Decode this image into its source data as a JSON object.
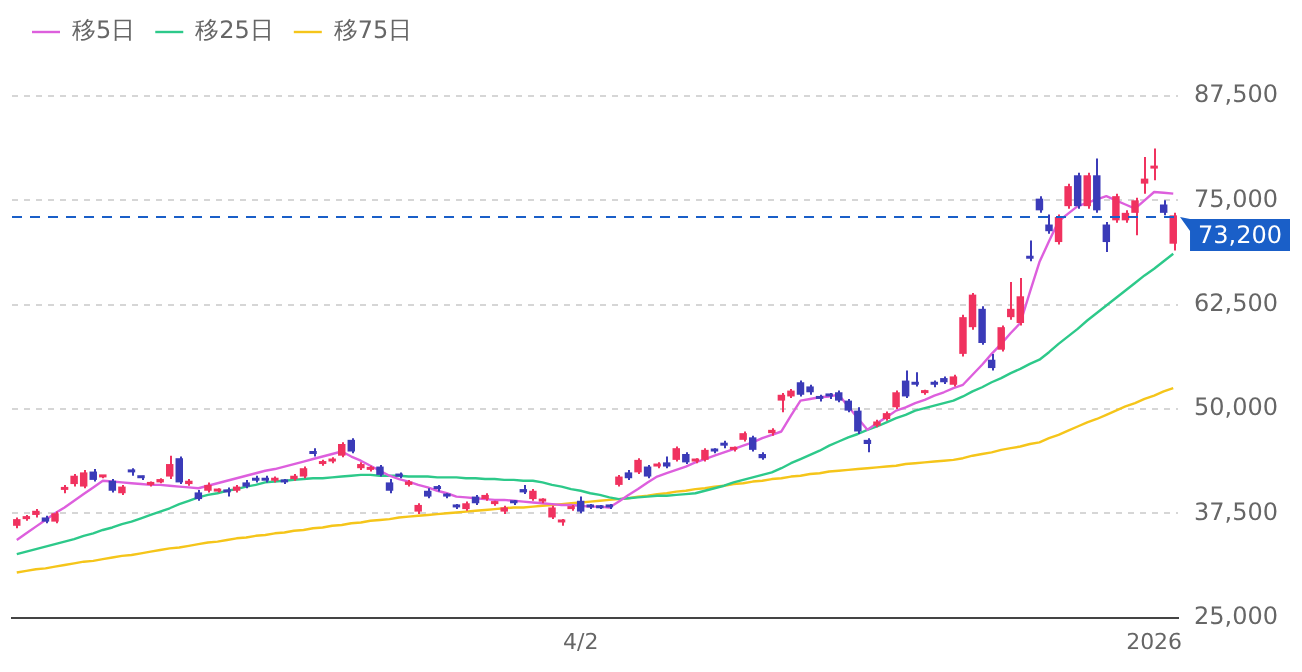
{
  "chart_data": {
    "type": "candlestick",
    "categories": [
      null,
      null,
      null,
      null,
      null,
      null,
      null,
      null,
      null,
      null,
      null,
      null,
      null,
      null,
      null,
      null,
      null,
      null,
      null,
      null,
      null,
      null,
      null,
      null,
      null,
      null,
      null,
      null,
      null,
      null,
      null,
      null,
      null,
      null,
      null,
      null,
      null,
      null,
      null,
      null,
      null,
      null,
      null,
      null,
      null,
      null,
      null,
      null,
      null,
      null,
      null,
      null,
      null,
      null,
      null,
      null,
      null,
      null,
      null,
      "4/2",
      null,
      null,
      null,
      null,
      null,
      null,
      null,
      null,
      null,
      null,
      null,
      null,
      null,
      null,
      null,
      null,
      null,
      null,
      null,
      null,
      null,
      null,
      null,
      null,
      null,
      null,
      null,
      null,
      null,
      null,
      null,
      null,
      null,
      null,
      null,
      null,
      null,
      null,
      null,
      null,
      null,
      null,
      null,
      null,
      null,
      null,
      null,
      null,
      null,
      null,
      null,
      null,
      null,
      null,
      null,
      null,
      null,
      null,
      null,
      "2026",
      null,
      null
    ],
    "ohlc": [
      [
        36000,
        37000,
        35700,
        36800
      ],
      [
        36800,
        37300,
        36600,
        37100
      ],
      [
        37300,
        38000,
        37000,
        37800
      ],
      [
        37000,
        37200,
        36300,
        36500
      ],
      [
        36500,
        37700,
        36300,
        37500
      ],
      [
        40300,
        40900,
        39900,
        40400
      ],
      [
        41000,
        42200,
        40700,
        42000
      ],
      [
        40700,
        42700,
        40500,
        42400
      ],
      [
        42500,
        42800,
        41300,
        41500
      ],
      [
        41800,
        42000,
        41700,
        41900
      ],
      [
        41400,
        41600,
        40000,
        40200
      ],
      [
        39900,
        40900,
        39700,
        40700
      ],
      [
        42500,
        42900,
        42000,
        42400
      ],
      [
        41900,
        42000,
        41500,
        41700
      ],
      [
        40900,
        41300,
        40700,
        41200
      ],
      [
        41200,
        41700,
        41100,
        41600
      ],
      [
        41900,
        44400,
        41600,
        43400
      ],
      [
        44100,
        44300,
        41000,
        41200
      ],
      [
        41000,
        41600,
        40800,
        41400
      ],
      [
        40000,
        40300,
        39000,
        39200
      ],
      [
        40200,
        41200,
        40000,
        40900
      ],
      [
        40100,
        40500,
        40000,
        40300
      ],
      [
        40100,
        40600,
        39500,
        40000
      ],
      [
        40200,
        40900,
        40000,
        40700
      ],
      [
        41200,
        41500,
        40500,
        40700
      ],
      [
        41600,
        42000,
        41200,
        41400
      ],
      [
        41600,
        42000,
        41200,
        41400
      ],
      [
        41400,
        41900,
        41200,
        41700
      ],
      [
        41400,
        41600,
        41000,
        41200
      ],
      [
        41600,
        42200,
        41400,
        42000
      ],
      [
        41900,
        43100,
        41700,
        42900
      ],
      [
        44700,
        45300,
        44300,
        44600
      ],
      [
        43400,
        43900,
        43200,
        43700
      ],
      [
        43700,
        44200,
        43500,
        44000
      ],
      [
        44400,
        46000,
        44200,
        45800
      ],
      [
        46300,
        46500,
        44700,
        44900
      ],
      [
        42900,
        43600,
        42700,
        43400
      ],
      [
        42700,
        43200,
        42500,
        43000
      ],
      [
        43100,
        43300,
        41900,
        42100
      ],
      [
        41200,
        41600,
        39900,
        40200
      ],
      [
        42100,
        42400,
        41700,
        41900
      ],
      [
        40900,
        41500,
        40700,
        41300
      ],
      [
        37700,
        38700,
        37400,
        38500
      ],
      [
        40200,
        40500,
        39300,
        39500
      ],
      [
        40500,
        40900,
        40100,
        40400
      ],
      [
        39700,
        39900,
        39300,
        39500
      ],
      [
        38400,
        38600,
        38000,
        38200
      ],
      [
        38000,
        38900,
        37800,
        38700
      ],
      [
        39500,
        39700,
        38500,
        38700
      ],
      [
        39200,
        39900,
        39000,
        39700
      ],
      [
        38600,
        39000,
        38400,
        38700
      ],
      [
        37700,
        38400,
        37400,
        38200
      ],
      [
        38800,
        39100,
        38500,
        38700
      ],
      [
        40400,
        40900,
        39800,
        40000
      ],
      [
        39200,
        40400,
        39000,
        40200
      ],
      [
        38900,
        39300,
        38700,
        39000
      ],
      [
        37000,
        38400,
        36800,
        38200
      ],
      [
        36400,
        36800,
        36000,
        36600
      ],
      [
        38000,
        38500,
        37800,
        38300
      ],
      [
        39000,
        39500,
        37500,
        37700
      ],
      [
        38400,
        38600,
        38000,
        38200
      ],
      [
        38300,
        38500,
        38000,
        38100
      ],
      [
        38400,
        38600,
        38000,
        38200
      ],
      [
        40900,
        42100,
        40700,
        41900
      ],
      [
        42400,
        42700,
        41500,
        41700
      ],
      [
        42400,
        44100,
        42200,
        43900
      ],
      [
        43100,
        43300,
        41700,
        41900
      ],
      [
        43100,
        43600,
        42900,
        43400
      ],
      [
        43600,
        44300,
        42900,
        43100
      ],
      [
        43900,
        45500,
        43700,
        45300
      ],
      [
        44600,
        44800,
        43400,
        43600
      ],
      [
        43700,
        44100,
        43500,
        43900
      ],
      [
        43900,
        45300,
        43700,
        45100
      ],
      [
        45100,
        45300,
        44700,
        44900
      ],
      [
        45700,
        46200,
        45300,
        45600
      ],
      [
        45100,
        45500,
        44900,
        45300
      ],
      [
        46300,
        47300,
        46100,
        47100
      ],
      [
        46600,
        46800,
        44900,
        45100
      ],
      [
        44600,
        44800,
        43900,
        44100
      ],
      [
        47100,
        47700,
        46800,
        47500
      ],
      [
        51000,
        51900,
        49600,
        51700
      ],
      [
        51500,
        52400,
        51300,
        52200
      ],
      [
        53200,
        53400,
        51500,
        51700
      ],
      [
        52700,
        52900,
        51700,
        52000
      ],
      [
        51300,
        51700,
        50900,
        51200
      ],
      [
        51600,
        51900,
        51200,
        51500
      ],
      [
        52000,
        52200,
        50800,
        51000
      ],
      [
        51000,
        51200,
        49600,
        49800
      ],
      [
        49800,
        50200,
        47000,
        47300
      ],
      [
        46300,
        46500,
        44800,
        45800
      ],
      [
        48000,
        48700,
        47800,
        48500
      ],
      [
        48800,
        49700,
        48600,
        49500
      ],
      [
        50200,
        52200,
        50000,
        52000
      ],
      [
        53400,
        54600,
        51300,
        51500
      ],
      [
        53000,
        54400,
        52700,
        52900
      ],
      [
        51900,
        52300,
        51700,
        52100
      ],
      [
        53000,
        53400,
        52600,
        52900
      ],
      [
        53700,
        53900,
        53000,
        53200
      ],
      [
        52900,
        54100,
        52700,
        53900
      ],
      [
        56600,
        61300,
        56300,
        61000
      ],
      [
        59800,
        63900,
        59500,
        63700
      ],
      [
        62000,
        62300,
        57700,
        57900
      ],
      [
        55900,
        56600,
        54600,
        54900
      ],
      [
        57100,
        60000,
        56900,
        59800
      ],
      [
        61000,
        65200,
        60700,
        62000
      ],
      [
        60300,
        65700,
        60000,
        63500
      ],
      [
        68200,
        70200,
        67700,
        68000
      ],
      [
        75200,
        75500,
        73500,
        73800
      ],
      [
        72100,
        73300,
        71000,
        71300
      ],
      [
        70000,
        73300,
        69700,
        73000
      ],
      [
        74300,
        77000,
        74000,
        76700
      ],
      [
        78000,
        78300,
        74000,
        74300
      ],
      [
        74300,
        78300,
        74000,
        78000
      ],
      [
        78000,
        80000,
        73500,
        73800
      ],
      [
        72100,
        72400,
        68800,
        70000
      ],
      [
        72600,
        75800,
        72300,
        75500
      ],
      [
        72600,
        73800,
        72300,
        73500
      ],
      [
        73500,
        75300,
        70800,
        75000
      ],
      [
        77000,
        80200,
        75800,
        77600
      ],
      [
        78800,
        81200,
        77400,
        79000
      ],
      [
        74500,
        75000,
        73200,
        73500
      ],
      [
        69800,
        73500,
        69000,
        73200
      ]
    ],
    "colors": [
      "#f0325f",
      "#f0325f",
      "#f0325f",
      "#3b3bb8",
      "#f0325f",
      "#f0325f",
      "#f0325f",
      "#f0325f",
      "#3b3bb8",
      "#f0325f",
      "#3b3bb8",
      "#f0325f",
      "#3b3bb8",
      "#3b3bb8",
      "#f0325f",
      "#f0325f",
      "#f0325f",
      "#3b3bb8",
      "#f0325f",
      "#3b3bb8",
      "#f0325f",
      "#f0325f",
      "#3b3bb8",
      "#f0325f",
      "#3b3bb8",
      "#3b3bb8",
      "#3b3bb8",
      "#f0325f",
      "#3b3bb8",
      "#f0325f",
      "#f0325f",
      "#3b3bb8",
      "#f0325f",
      "#f0325f",
      "#f0325f",
      "#3b3bb8",
      "#f0325f",
      "#f0325f",
      "#3b3bb8",
      "#3b3bb8",
      "#3b3bb8",
      "#f0325f",
      "#f0325f",
      "#3b3bb8",
      "#3b3bb8",
      "#3b3bb8",
      "#3b3bb8",
      "#f0325f",
      "#3b3bb8",
      "#f0325f",
      "#f0325f",
      "#f0325f",
      "#3b3bb8",
      "#3b3bb8",
      "#f0325f",
      "#f0325f",
      "#f0325f",
      "#f0325f",
      "#f0325f",
      "#3b3bb8",
      "#3b3bb8",
      "#3b3bb8",
      "#3b3bb8",
      "#f0325f",
      "#3b3bb8",
      "#f0325f",
      "#3b3bb8",
      "#f0325f",
      "#3b3bb8",
      "#f0325f",
      "#3b3bb8",
      "#f0325f",
      "#f0325f",
      "#3b3bb8",
      "#3b3bb8",
      "#f0325f",
      "#f0325f",
      "#3b3bb8",
      "#3b3bb8",
      "#f0325f",
      "#f0325f",
      "#f0325f",
      "#3b3bb8",
      "#3b3bb8",
      "#3b3bb8",
      "#3b3bb8",
      "#3b3bb8",
      "#3b3bb8",
      "#3b3bb8",
      "#3b3bb8",
      "#f0325f",
      "#f0325f",
      "#f0325f",
      "#3b3bb8",
      "#3b3bb8",
      "#f0325f",
      "#3b3bb8",
      "#3b3bb8",
      "#f0325f",
      "#f0325f",
      "#f0325f",
      "#3b3bb8",
      "#3b3bb8",
      "#f0325f",
      "#f0325f",
      "#f0325f",
      "#3b3bb8",
      "#3b3bb8",
      "#3b3bb8",
      "#f0325f",
      "#f0325f",
      "#3b3bb8",
      "#f0325f",
      "#3b3bb8",
      "#3b3bb8",
      "#f0325f",
      "#f0325f",
      "#f0325f",
      "#f0325f",
      "#f0325f",
      "#3b3bb8",
      "#f0325f"
    ],
    "series": [
      {
        "name": "移5日",
        "type": "line",
        "color": "#dd5fdd",
        "values": [
          34300,
          35100,
          35900,
          36700,
          37500,
          38200,
          39000,
          39800,
          40600,
          41400,
          41300,
          41200,
          41100,
          41000,
          40900,
          40900,
          40800,
          40700,
          40600,
          40500,
          40800,
          41100,
          41400,
          41700,
          42000,
          42300,
          42600,
          42800,
          43100,
          43400,
          43700,
          44000,
          44300,
          44600,
          44900,
          44300,
          43800,
          43200,
          42600,
          42000,
          41600,
          41300,
          40900,
          40600,
          40200,
          39900,
          39500,
          39400,
          39300,
          39200,
          39100,
          39100,
          39000,
          38900,
          38800,
          38700,
          38600,
          38500,
          38500,
          38400,
          38300,
          38300,
          38200,
          38900,
          39700,
          40400,
          41200,
          41900,
          42300,
          42700,
          43100,
          43600,
          44000,
          44400,
          44800,
          45200,
          45600,
          46000,
          46500,
          46900,
          47300,
          49200,
          51000,
          51200,
          51400,
          51500,
          51700,
          50300,
          48900,
          47500,
          48300,
          49000,
          49800,
          50200,
          50700,
          51100,
          51600,
          52000,
          52500,
          52900,
          54100,
          55300,
          56600,
          57800,
          59100,
          60300,
          64000,
          67600,
          70100,
          72500,
          73400,
          74300,
          74700,
          75100,
          75500,
          75000,
          74500,
          74000,
          75000,
          76000,
          75900,
          75800
        ]
      },
      {
        "name": "移25日",
        "type": "line",
        "color": "#2dc98a",
        "values": [
          32600,
          32900,
          33200,
          33500,
          33800,
          34100,
          34400,
          34800,
          35100,
          35500,
          35800,
          36200,
          36500,
          36900,
          37300,
          37700,
          38100,
          38600,
          39000,
          39400,
          39700,
          39900,
          40200,
          40400,
          40700,
          40900,
          41200,
          41300,
          41400,
          41500,
          41600,
          41700,
          41700,
          41800,
          41900,
          42000,
          42100,
          42100,
          42000,
          42000,
          42000,
          41900,
          41900,
          41900,
          41800,
          41800,
          41800,
          41700,
          41700,
          41600,
          41600,
          41500,
          41500,
          41400,
          41400,
          41200,
          40900,
          40700,
          40400,
          40200,
          39900,
          39700,
          39400,
          39200,
          39300,
          39400,
          39500,
          39600,
          39600,
          39700,
          39800,
          39900,
          40200,
          40500,
          40800,
          41200,
          41500,
          41800,
          42100,
          42400,
          42900,
          43500,
          44000,
          44500,
          45000,
          45600,
          46100,
          46600,
          47000,
          47500,
          47900,
          48400,
          48900,
          49300,
          49800,
          50100,
          50400,
          50700,
          51000,
          51500,
          52100,
          52600,
          53200,
          53700,
          54300,
          54800,
          55400,
          55900,
          56800,
          57800,
          58700,
          59600,
          60600,
          61500,
          62400,
          63300,
          64200,
          65100,
          66000,
          66800,
          67700,
          68600
        ]
      },
      {
        "name": "移75日",
        "type": "line",
        "color": "#f5c51a",
        "values": [
          30400,
          30600,
          30800,
          30900,
          31100,
          31300,
          31500,
          31700,
          31800,
          32000,
          32200,
          32400,
          32500,
          32700,
          32900,
          33100,
          33300,
          33400,
          33600,
          33800,
          34000,
          34100,
          34300,
          34500,
          34600,
          34800,
          34900,
          35100,
          35200,
          35400,
          35500,
          35700,
          35800,
          36000,
          36100,
          36300,
          36400,
          36600,
          36700,
          36800,
          37000,
          37100,
          37200,
          37300,
          37400,
          37500,
          37600,
          37700,
          37800,
          37900,
          38000,
          38100,
          38200,
          38200,
          38300,
          38400,
          38500,
          38600,
          38700,
          38800,
          38900,
          39000,
          39100,
          39200,
          39300,
          39500,
          39600,
          39800,
          39900,
          40100,
          40200,
          40400,
          40500,
          40700,
          40800,
          41000,
          41100,
          41300,
          41400,
          41600,
          41700,
          41900,
          42000,
          42200,
          42300,
          42500,
          42600,
          42700,
          42800,
          42900,
          43000,
          43100,
          43200,
          43400,
          43500,
          43600,
          43700,
          43800,
          43900,
          44100,
          44400,
          44600,
          44800,
          45100,
          45300,
          45500,
          45800,
          46000,
          46500,
          46900,
          47400,
          47900,
          48400,
          48800,
          49300,
          49800,
          50300,
          50700,
          51200,
          51600,
          52100,
          52500
        ]
      }
    ],
    "ylim": [
      25000,
      87500
    ],
    "yticks": [
      {
        "value": 25000,
        "label": "25,000"
      },
      {
        "value": 37500,
        "label": "37,500"
      },
      {
        "value": 50000,
        "label": "50,000"
      },
      {
        "value": 62500,
        "label": "62,500"
      },
      {
        "value": 75000,
        "label": "75,000"
      },
      {
        "value": 87500,
        "label": "87,500"
      }
    ],
    "ref_lines": [
      {
        "axis": "y",
        "value": 73200,
        "label": "73,200",
        "color": "#1a5fc8",
        "line_style": "dashed"
      }
    ],
    "grid": "y",
    "legend": "top left"
  }
}
